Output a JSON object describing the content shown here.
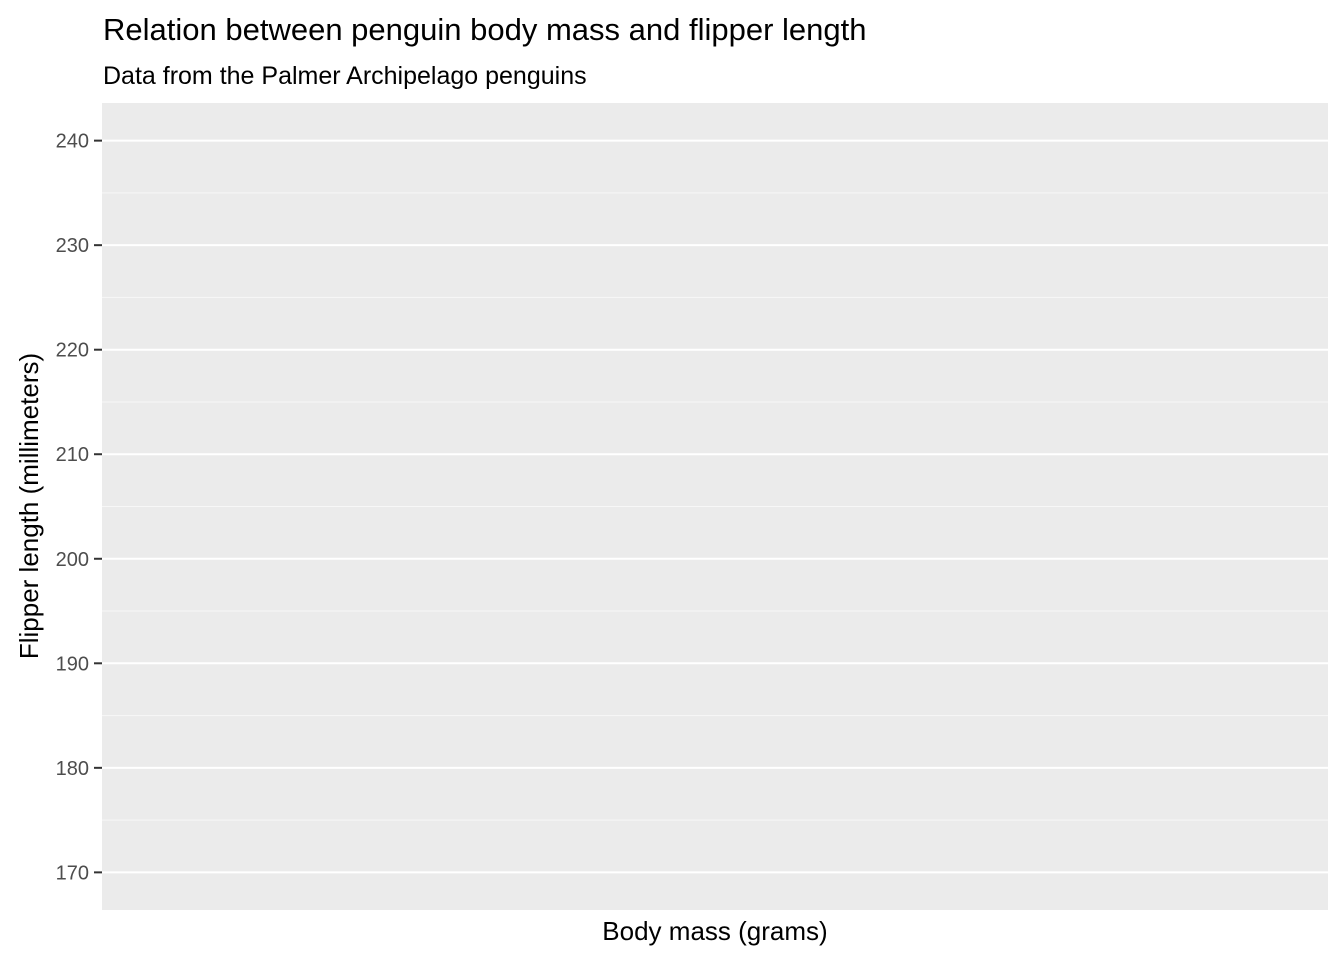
{
  "chart_data": {
    "type": "scatter",
    "title": "Relation between penguin body mass and flipper length",
    "subtitle": "Data from the Palmer Archipelago penguins",
    "xlabel": "Body mass (grams)",
    "ylabel": "Flipper length (millimeters)",
    "ylim": [
      166.4,
      243.6
    ],
    "y_ticks": [
      170,
      180,
      190,
      200,
      210,
      220,
      230,
      240
    ],
    "y_minor_ticks": [
      175,
      185,
      195,
      205,
      215,
      225,
      235
    ],
    "x_ticks": [],
    "series": [],
    "grid": true,
    "legend": "none",
    "colors": {
      "panel_background": "#ebebeb",
      "grid_major": "#ffffff",
      "grid_minor": "#f7f7f7",
      "tick_label": "#4d4d4d",
      "tick_mark": "#333333"
    }
  }
}
